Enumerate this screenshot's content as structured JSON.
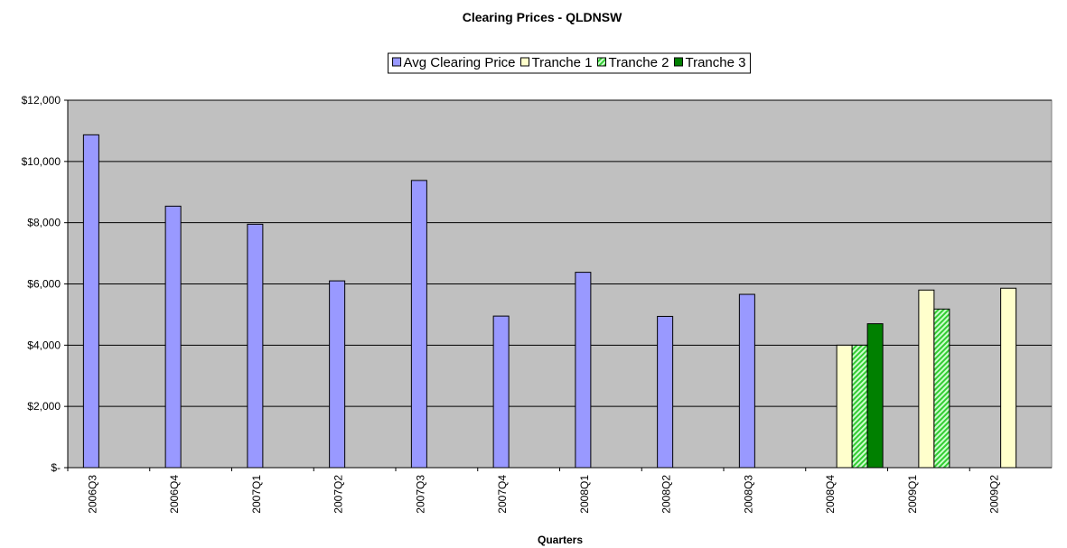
{
  "chart_data": {
    "type": "bar",
    "title": "Clearing Prices - QLDNSW",
    "x_label": "Quarters",
    "categories": [
      "2006Q3",
      "2006Q4",
      "2007Q1",
      "2007Q2",
      "2007Q3",
      "2007Q4",
      "2008Q1",
      "2008Q2",
      "2008Q3",
      "2008Q4",
      "2009Q1",
      "2009Q2"
    ],
    "series": [
      {
        "name": "Avg Clearing Price",
        "color": "#9999ff",
        "values": [
          10870,
          8540,
          7950,
          6100,
          9380,
          4950,
          6380,
          4940,
          5660,
          null,
          null,
          null
        ]
      },
      {
        "name": "Tranche 1",
        "color": "#ffffcc",
        "values": [
          null,
          null,
          null,
          null,
          null,
          null,
          null,
          null,
          null,
          4000,
          5800,
          5860
        ]
      },
      {
        "name": "Tranche 2",
        "color": "#33cc33",
        "hatch": true,
        "values": [
          null,
          null,
          null,
          null,
          null,
          null,
          null,
          null,
          null,
          4000,
          5180,
          null
        ]
      },
      {
        "name": "Tranche 3",
        "color": "#008000",
        "values": [
          null,
          null,
          null,
          null,
          null,
          null,
          null,
          null,
          null,
          4700,
          null,
          null
        ]
      }
    ],
    "ylim": [
      0,
      12000
    ],
    "yticks": [
      {
        "value": 0,
        "label": "$-"
      },
      {
        "value": 2000,
        "label": "$2,000"
      },
      {
        "value": 4000,
        "label": "$4,000"
      },
      {
        "value": 6000,
        "label": "$6,000"
      },
      {
        "value": 8000,
        "label": "$8,000"
      },
      {
        "value": 10000,
        "label": "$10,000"
      },
      {
        "value": 12000,
        "label": "$12,000"
      }
    ],
    "grid": true,
    "legend": "top"
  }
}
